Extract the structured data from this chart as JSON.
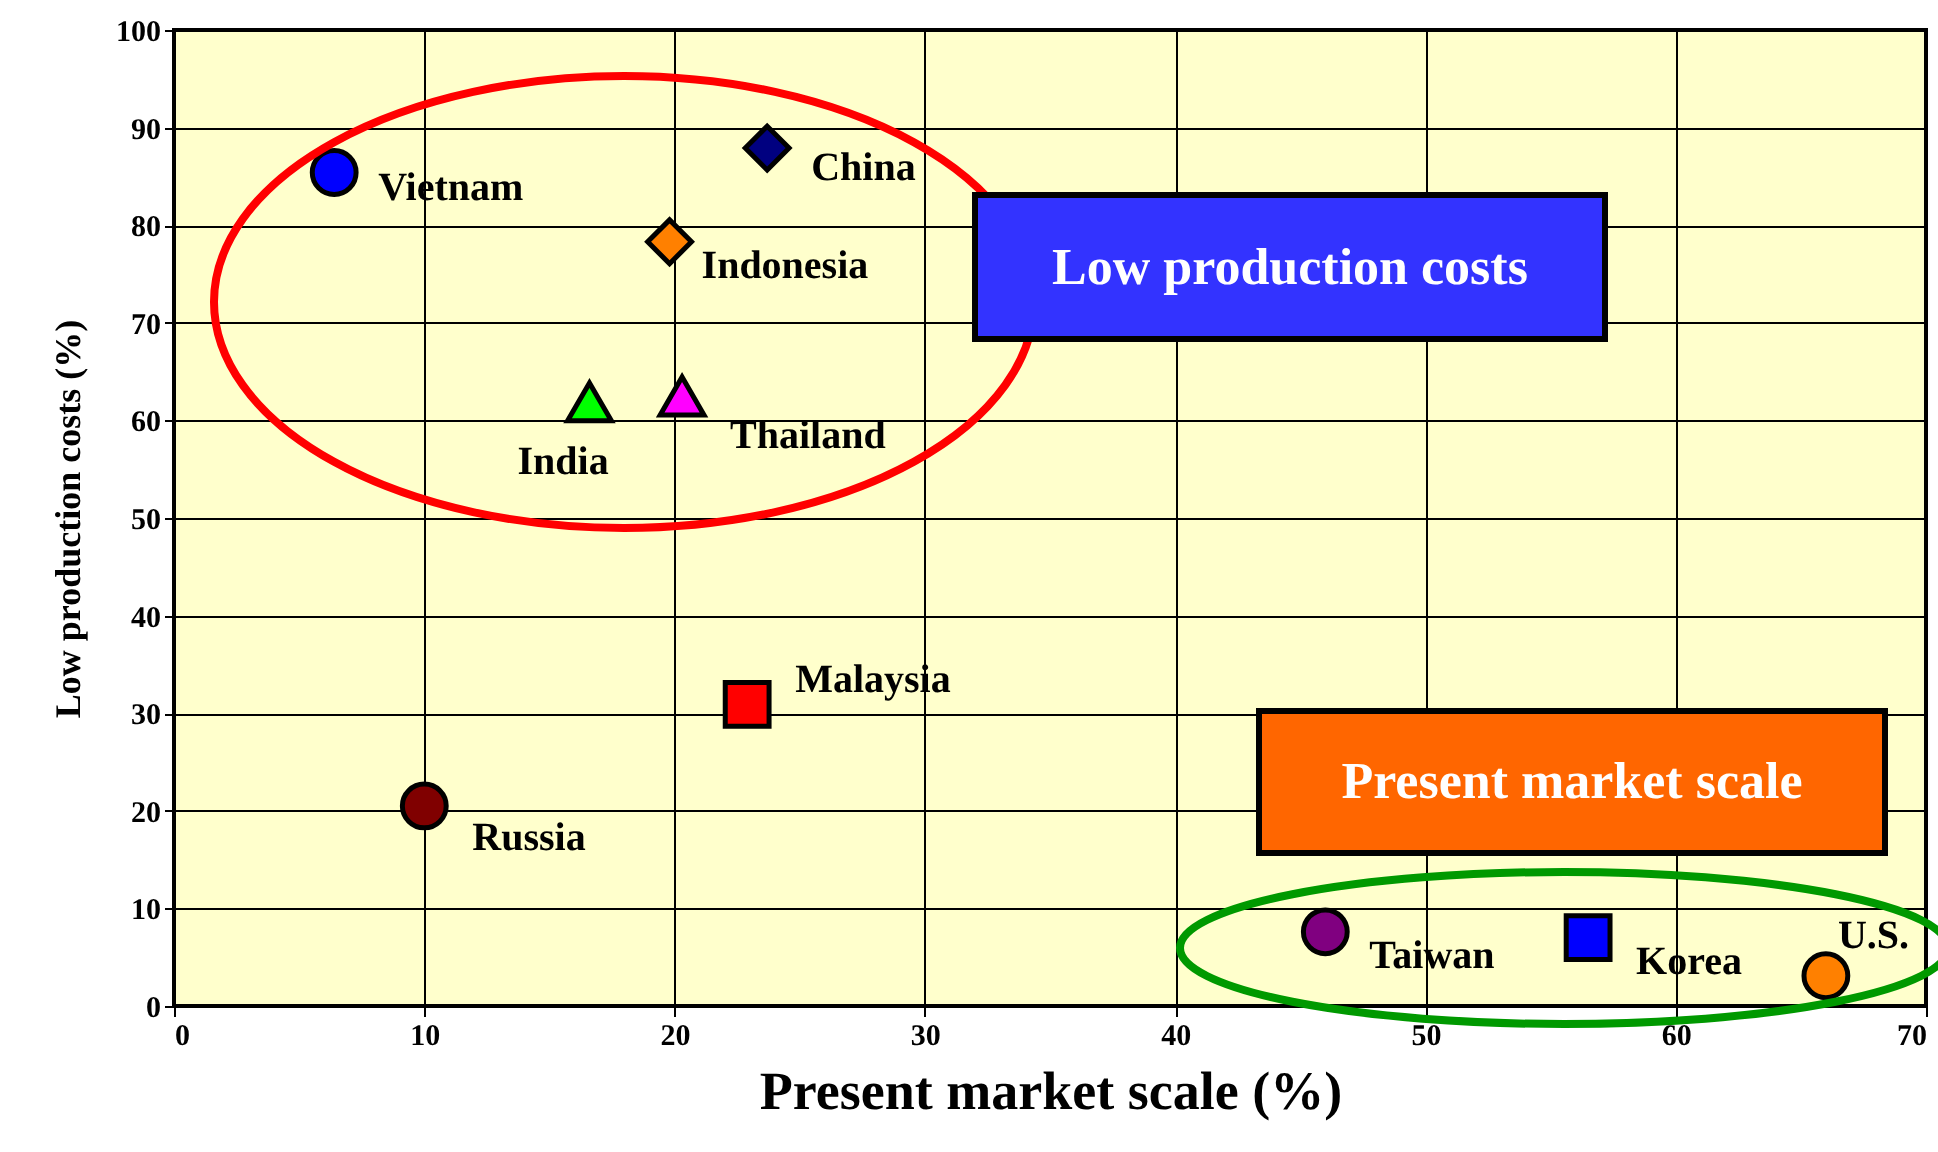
{
  "chart_data": {
    "type": "scatter",
    "xlabel": "Present market scale (%)",
    "ylabel": "Low production costs (%)",
    "xlim": [
      0,
      70
    ],
    "xticks": [
      0,
      10,
      20,
      30,
      40,
      50,
      60,
      70
    ],
    "ylim": [
      0,
      100
    ],
    "yticks": [
      0,
      10,
      20,
      30,
      40,
      50,
      60,
      70,
      80,
      90,
      100
    ],
    "grid": true,
    "series": [
      {
        "name": "Vietnam",
        "color": "#0000ff",
        "marker": "circle",
        "x": [
          6.4
        ],
        "values": [
          85.4
        ]
      },
      {
        "name": "China",
        "color": "#000080",
        "marker": "diamond",
        "x": [
          23.7
        ],
        "values": [
          87.9
        ]
      },
      {
        "name": "Indonesia",
        "color": "#ff8000",
        "marker": "diamond",
        "x": [
          19.8
        ],
        "values": [
          78.3
        ]
      },
      {
        "name": "India",
        "color": "#00ff00",
        "marker": "triangle",
        "x": [
          16.6
        ],
        "values": [
          61.9
        ]
      },
      {
        "name": "Thailand",
        "color": "#ff00ff",
        "marker": "triangle",
        "x": [
          20.3
        ],
        "values": [
          62.5
        ]
      },
      {
        "name": "Malaysia",
        "color": "#ff0000",
        "marker": "square",
        "x": [
          22.9
        ],
        "values": [
          30.9
        ]
      },
      {
        "name": "Russia",
        "color": "#800000",
        "marker": "circle",
        "x": [
          10.0
        ],
        "values": [
          20.5
        ]
      },
      {
        "name": "Taiwan",
        "color": "#800080",
        "marker": "circle",
        "x": [
          46.0
        ],
        "values": [
          7.6
        ]
      },
      {
        "name": "Korea",
        "color": "#0000ff",
        "marker": "square",
        "x": [
          56.5
        ],
        "values": [
          7.0
        ]
      },
      {
        "name": "U.S.",
        "color": "#ff8000",
        "marker": "circle",
        "x": [
          66.0
        ],
        "values": [
          3.1
        ]
      }
    ],
    "annotations": [
      "Low production costs",
      "Present market scale"
    ]
  }
}
